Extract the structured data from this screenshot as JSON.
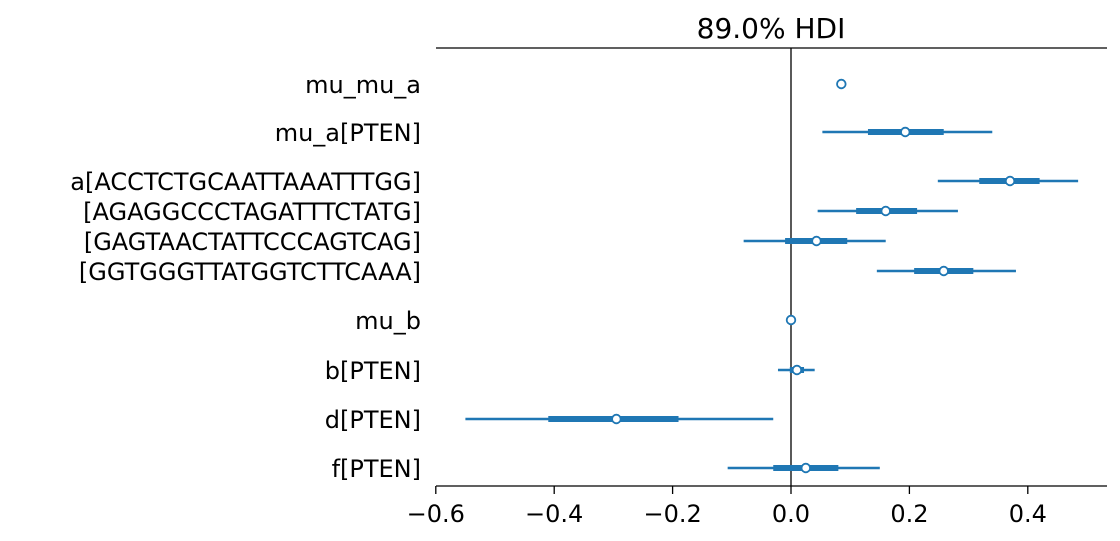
{
  "chart_data": {
    "type": "forest",
    "title": "89.0% HDI",
    "xlim": [
      -0.6,
      0.53
    ],
    "xticks": [
      -0.6,
      -0.4,
      -0.2,
      0.0,
      0.2,
      0.4
    ],
    "xtick_labels": [
      "−0.6",
      "−0.4",
      "−0.2",
      "0.0",
      "0.2",
      "0.4"
    ],
    "reference_line_x": 0.0,
    "color": "#1f77b4",
    "series": [
      {
        "label_lines": [
          "mu_mu_a"
        ],
        "rows": [
          {
            "mean": 0.085,
            "hdi": [
              0.085,
              0.085
            ],
            "iqr": [
              0.085,
              0.085
            ]
          }
        ]
      },
      {
        "label_lines": [
          "mu_a[PTEN]"
        ],
        "rows": [
          {
            "mean": 0.193,
            "hdi": [
              0.053,
              0.34
            ],
            "iqr": [
              0.13,
              0.258
            ]
          }
        ]
      },
      {
        "label_lines": [
          "a[ACCTCTGCAATTAAATTTGG]",
          "[AGAGGCCCTAGATTTCTATG]",
          "[GAGTAACTATTCCCAGTCAG]",
          "[GGTGGGTTATGGTCTTCAAA]"
        ],
        "rows": [
          {
            "mean": 0.37,
            "hdi": [
              0.248,
              0.485
            ],
            "iqr": [
              0.318,
              0.42
            ]
          },
          {
            "mean": 0.16,
            "hdi": [
              0.045,
              0.282
            ],
            "iqr": [
              0.11,
              0.213
            ]
          },
          {
            "mean": 0.043,
            "hdi": [
              -0.08,
              0.16
            ],
            "iqr": [
              -0.01,
              0.095
            ]
          },
          {
            "mean": 0.258,
            "hdi": [
              0.145,
              0.38
            ],
            "iqr": [
              0.208,
              0.308
            ]
          }
        ]
      },
      {
        "label_lines": [
          "mu_b"
        ],
        "rows": [
          {
            "mean": 0.0,
            "hdi": [
              0.0,
              0.0
            ],
            "iqr": [
              0.0,
              0.0
            ]
          }
        ]
      },
      {
        "label_lines": [
          "b[PTEN]"
        ],
        "rows": [
          {
            "mean": 0.01,
            "hdi": [
              -0.022,
              0.04
            ],
            "iqr": [
              -0.002,
              0.022
            ]
          }
        ]
      },
      {
        "label_lines": [
          "d[PTEN]"
        ],
        "rows": [
          {
            "mean": -0.295,
            "hdi": [
              -0.55,
              -0.03
            ],
            "iqr": [
              -0.41,
              -0.19
            ]
          }
        ]
      },
      {
        "label_lines": [
          "f[PTEN]"
        ],
        "rows": [
          {
            "mean": 0.025,
            "hdi": [
              -0.107,
              0.15
            ],
            "iqr": [
              -0.03,
              0.08
            ]
          }
        ]
      }
    ]
  }
}
